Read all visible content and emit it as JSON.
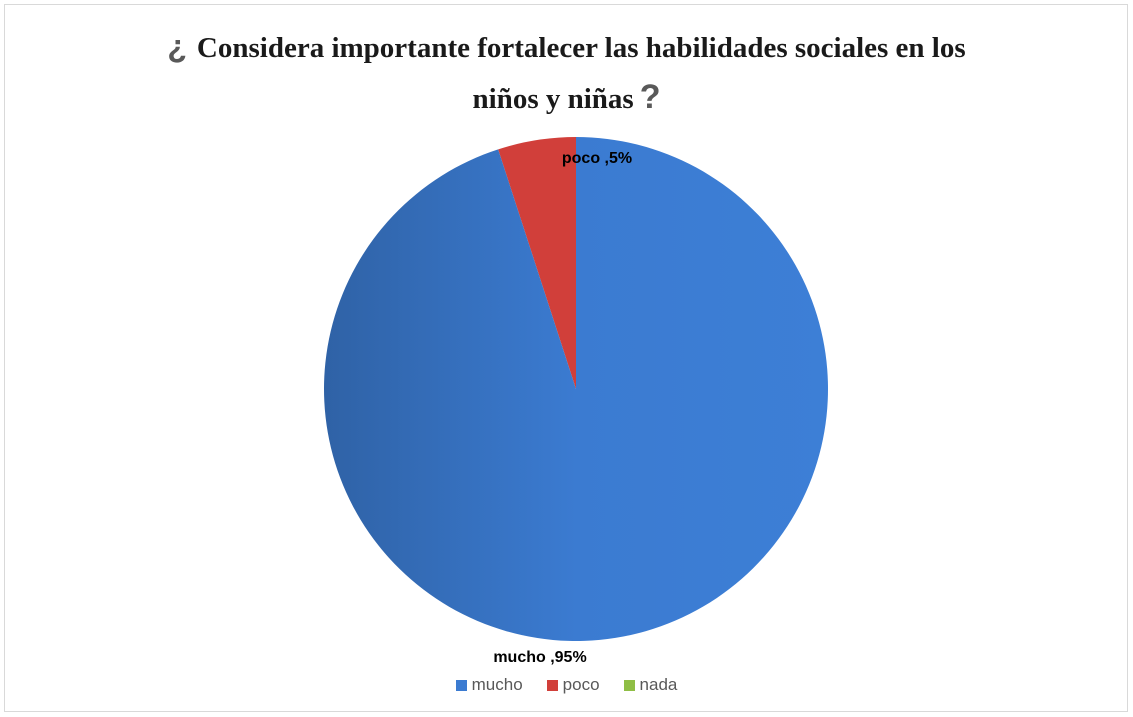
{
  "chart_data": {
    "type": "pie",
    "title_line1": "Considera importante fortalecer las habilidades sociales en los",
    "title_line2": "niños y niñas",
    "title_open_mark": "¿",
    "title_close_mark": "?",
    "categories": [
      "mucho",
      "poco",
      "nada"
    ],
    "values": [
      95,
      5,
      0
    ],
    "colors": [
      "#3b7bd1",
      "#d13f3a",
      "#8fbe45"
    ],
    "data_labels": [
      "mucho ,95%",
      "poco ,5%",
      ""
    ],
    "legend_position": "bottom",
    "start_angle": "top, clockwise: poco then nada then mucho"
  }
}
